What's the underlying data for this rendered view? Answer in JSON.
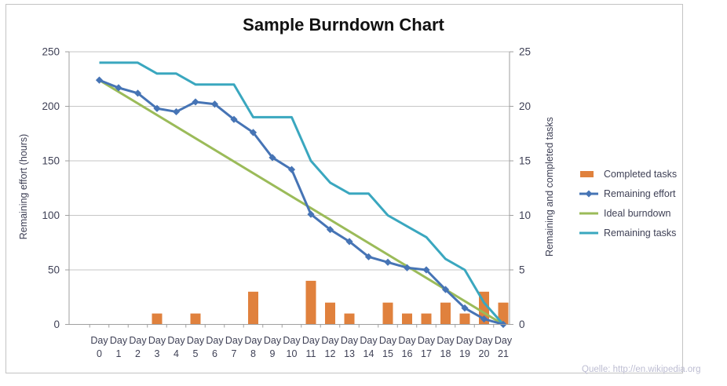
{
  "title": "Sample Burndown Chart",
  "source_note": "Quelle: http://en.wikipedia.org",
  "chart_data": {
    "type": "combo",
    "title": "Sample Burndown Chart",
    "categories": [
      "Day 0",
      "Day 1",
      "Day 2",
      "Day 3",
      "Day 4",
      "Day 5",
      "Day 6",
      "Day 7",
      "Day 8",
      "Day 9",
      "Day 10",
      "Day 11",
      "Day 12",
      "Day 13",
      "Day 14",
      "Day 15",
      "Day 16",
      "Day 17",
      "Day 18",
      "Day 19",
      "Day 20",
      "Day 21"
    ],
    "left_axis": {
      "label": "Remaining effort (hours)",
      "min": 0,
      "max": 250,
      "step": 50,
      "tick_labels": [
        "0",
        "50",
        "100",
        "150",
        "200",
        "250"
      ]
    },
    "right_axis": {
      "label": "Remaining and  completed tasks",
      "min": 0,
      "max": 25,
      "step": 5,
      "tick_labels": [
        "0",
        "5",
        "10",
        "15",
        "20",
        "25"
      ]
    },
    "grid": true,
    "legend_position": "right",
    "series": [
      {
        "name": "Completed tasks",
        "type": "bar",
        "axis": "right",
        "color": "#e0813d",
        "values": [
          0,
          0,
          0,
          1,
          0,
          1,
          0,
          0,
          3,
          0,
          0,
          4,
          2,
          1,
          0,
          2,
          1,
          1,
          2,
          1,
          3,
          2
        ]
      },
      {
        "name": "Remaining effort",
        "type": "line",
        "marker": "diamond",
        "axis": "left",
        "color": "#4674b5",
        "values": [
          224,
          217,
          212,
          198,
          195,
          204,
          202,
          188,
          176,
          153,
          142,
          101,
          87,
          76,
          62,
          57,
          52,
          50,
          32,
          15,
          5,
          0
        ]
      },
      {
        "name": "Ideal burndown",
        "type": "line",
        "axis": "left",
        "color": "#9bbb59",
        "start_value": 224,
        "end_value": 0
      },
      {
        "name": "Remaining tasks",
        "type": "line",
        "axis": "right",
        "color": "#3aa7bf",
        "values": [
          24,
          24,
          24,
          23,
          23,
          22,
          22,
          22,
          19,
          19,
          19,
          15,
          13,
          12,
          12,
          10,
          9,
          8,
          6,
          5,
          2,
          0
        ]
      }
    ]
  },
  "legend": {
    "items": [
      {
        "label": "Completed tasks",
        "swatch": "bar",
        "color": "#e0813d"
      },
      {
        "label": "Remaining effort",
        "swatch": "line-diamond",
        "color": "#4674b5"
      },
      {
        "label": "Ideal burndown",
        "swatch": "line",
        "color": "#9bbb59"
      },
      {
        "label": "Remaining tasks",
        "swatch": "line",
        "color": "#3aa7bf"
      }
    ]
  }
}
